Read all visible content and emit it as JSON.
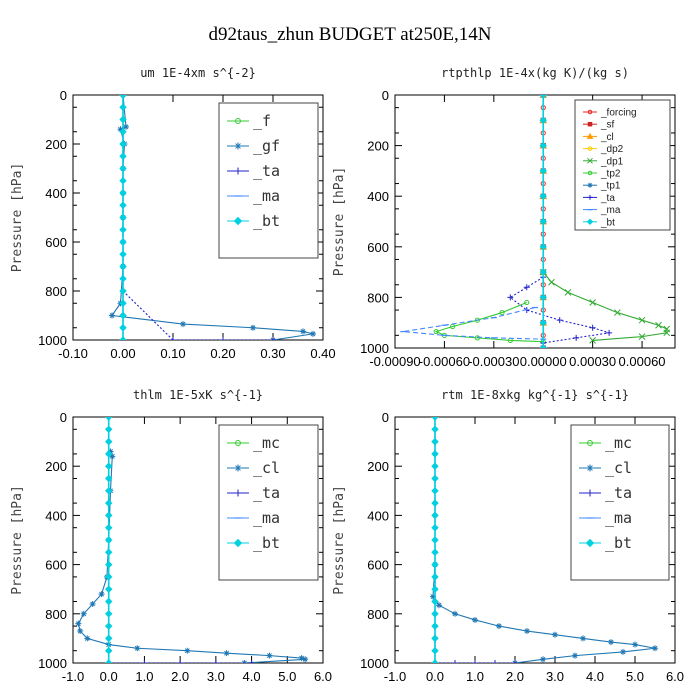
{
  "figure": {
    "title": "d92taus_zhun  BUDGET at250E,14N"
  },
  "colors": {
    "f": "#33cc33",
    "gf": "#1f77b4",
    "ta": "#2222cc",
    "ma": "#4488ff",
    "bt": "#00d0e0",
    "forcing": "#ee2222",
    "sf": "#cc2222",
    "cl_orange": "#ff9900",
    "dp2": "#ffcc00",
    "dp1": "#33aa33",
    "tp2": "#33cc33",
    "tp1": "#1f77b4",
    "mc": "#33cc33",
    "cl": "#1f77b4"
  },
  "chart_data": [
    {
      "type": "line",
      "title": "um   1E-4xm s^{-2}",
      "ylabel": "Pressure [hPa]",
      "xlim": [
        -0.1,
        0.4
      ],
      "ylim": [
        1000,
        0
      ],
      "xticks": [
        "-0.10",
        "0.00",
        "0.10",
        "0.20",
        "0.30",
        "0.40"
      ],
      "xtick_values": [
        -0.1,
        0.0,
        0.1,
        0.2,
        0.3,
        0.4
      ],
      "yticks": [
        "0",
        "200",
        "400",
        "600",
        "800",
        "1000"
      ],
      "ytick_values": [
        0,
        200,
        400,
        600,
        800,
        1000
      ],
      "legend": {
        "placement": "top-right",
        "style": "big"
      },
      "series": [
        {
          "name": "_f",
          "color": "#33cc33",
          "marker": "circle",
          "x": [
            0,
            0,
            0,
            0,
            0,
            0,
            0,
            0,
            0,
            0,
            0,
            0
          ],
          "y": [
            0,
            100,
            200,
            300,
            400,
            500,
            600,
            700,
            800,
            900,
            950,
            1000
          ]
        },
        {
          "name": "_gf",
          "color": "#1f77b4",
          "marker": "star",
          "x": [
            0.0,
            0.006,
            -0.005,
            0.003,
            0.0,
            0.0,
            0.0,
            0.0,
            0.0,
            -0.005,
            -0.022,
            0.12,
            0.26,
            0.36,
            0.38,
            0.3
          ],
          "y": [
            0,
            130,
            140,
            200,
            300,
            400,
            500,
            600,
            700,
            850,
            900,
            935,
            950,
            965,
            975,
            1000
          ]
        },
        {
          "name": "_ta",
          "color": "#2222cc",
          "marker": "plus",
          "x": [
            0,
            0,
            0,
            0,
            0,
            0,
            0,
            0,
            0,
            0.1,
            0.2,
            0.3
          ],
          "y": [
            0,
            100,
            200,
            300,
            400,
            500,
            600,
            700,
            800,
            1000,
            1000,
            1000
          ]
        },
        {
          "name": "_ma",
          "color": "#4488ff",
          "marker": "dash",
          "x": [
            0,
            0,
            0,
            0,
            0,
            0,
            0,
            0,
            0,
            0,
            0
          ],
          "y": [
            0,
            100,
            200,
            300,
            400,
            500,
            600,
            700,
            800,
            900,
            1000
          ]
        },
        {
          "name": "_bt",
          "color": "#00d0e0",
          "marker": "diamond",
          "x": [
            0,
            0,
            0,
            0,
            0,
            0,
            0,
            0,
            0,
            0,
            0,
            0,
            0,
            0,
            0,
            0,
            0,
            0,
            0,
            0,
            0
          ],
          "y": [
            0,
            50,
            100,
            150,
            200,
            250,
            300,
            350,
            400,
            450,
            500,
            550,
            600,
            650,
            700,
            750,
            800,
            850,
            900,
            950,
            1000
          ]
        }
      ]
    },
    {
      "type": "line",
      "title": "rtpthlp   1E-4x(kg K)/(kg s)",
      "ylabel": "Pressure [hPa]",
      "xlim": [
        -0.0009,
        0.0008
      ],
      "ylim": [
        1000,
        0
      ],
      "xticks": [
        "-0.00090",
        "-0.00060",
        "-0.00030",
        "0.00000",
        "0.00030",
        "0.00060"
      ],
      "xtick_values": [
        -0.0009,
        -0.0006,
        -0.0003,
        0.0,
        0.0003,
        0.0006
      ],
      "yticks": [
        "0",
        "200",
        "400",
        "600",
        "800",
        "1000"
      ],
      "ytick_values": [
        0,
        200,
        400,
        600,
        800,
        1000
      ],
      "legend": {
        "placement": "top-right",
        "style": "small"
      },
      "series": [
        {
          "name": "_forcing",
          "color": "#ee2222",
          "marker": "circle",
          "x": [
            0,
            0,
            0,
            0,
            0,
            0,
            0,
            0,
            0,
            0,
            0,
            0,
            0,
            0,
            0,
            0,
            0,
            0,
            0,
            0,
            0
          ],
          "y": [
            0,
            50,
            100,
            150,
            200,
            250,
            300,
            350,
            400,
            450,
            500,
            550,
            600,
            650,
            700,
            750,
            800,
            850,
            900,
            950,
            1000
          ]
        },
        {
          "name": "_sf",
          "color": "#cc2222",
          "marker": "square",
          "x": [
            0,
            0,
            0,
            0,
            0,
            0,
            0,
            0,
            0,
            0,
            0
          ],
          "y": [
            0,
            100,
            200,
            300,
            400,
            500,
            600,
            700,
            800,
            900,
            1000
          ]
        },
        {
          "name": "_cl",
          "color": "#ff9900",
          "marker": "triangle",
          "x": [
            0,
            0,
            0,
            0,
            0,
            0,
            0,
            0,
            0,
            0,
            0
          ],
          "y": [
            0,
            100,
            200,
            300,
            400,
            500,
            600,
            700,
            800,
            900,
            1000
          ]
        },
        {
          "name": "_dp2",
          "color": "#ffcc00",
          "marker": "circle",
          "x": [
            0,
            0,
            0,
            0,
            0,
            0,
            0,
            0,
            0,
            0,
            0
          ],
          "y": [
            0,
            100,
            200,
            300,
            400,
            500,
            600,
            700,
            800,
            900,
            1000
          ]
        },
        {
          "name": "_dp1",
          "color": "#33aa33",
          "marker": "x",
          "x": [
            0.0,
            5e-05,
            0.00015,
            0.0003,
            0.00045,
            0.0006,
            0.0007,
            0.00075,
            0.00075,
            0.0006,
            0.0003
          ],
          "y": [
            700,
            740,
            780,
            820,
            860,
            890,
            910,
            925,
            940,
            955,
            970
          ]
        },
        {
          "name": "_tp2",
          "color": "#33cc33",
          "marker": "circle",
          "x": [
            -0.0001,
            -0.00025,
            -0.0004,
            -0.00055,
            -0.00065,
            -0.0006,
            -0.0004,
            -0.0002,
            0.0
          ],
          "y": [
            820,
            860,
            890,
            915,
            935,
            950,
            960,
            970,
            975
          ]
        },
        {
          "name": "_tp1",
          "color": "#1f77b4",
          "marker": "star",
          "x": [
            0,
            0,
            0,
            0,
            0,
            0,
            0,
            0,
            0,
            0,
            0
          ],
          "y": [
            0,
            100,
            200,
            300,
            400,
            500,
            600,
            700,
            800,
            900,
            1000
          ]
        },
        {
          "name": "_ta",
          "color": "#2222cc",
          "marker": "plus",
          "x": [
            0.0,
            -0.0001,
            -0.0002,
            -0.0001,
            0.0001,
            0.0003,
            0.0004,
            0.0002,
            0.0
          ],
          "y": [
            720,
            760,
            800,
            850,
            890,
            920,
            940,
            960,
            980
          ]
        },
        {
          "name": "_ma",
          "color": "#4488ff",
          "marker": "dash",
          "x": [
            -5e-05,
            -0.0003,
            -0.0006,
            -0.00085,
            -0.0006,
            -0.0003,
            0.0
          ],
          "y": [
            840,
            880,
            910,
            935,
            950,
            960,
            965
          ]
        },
        {
          "name": "_bt",
          "color": "#00d0e0",
          "marker": "diamond",
          "x": [
            0,
            0,
            0,
            0,
            0,
            0,
            0,
            0,
            0,
            0,
            0
          ],
          "y": [
            0,
            100,
            200,
            300,
            400,
            500,
            600,
            700,
            800,
            900,
            1000
          ]
        }
      ]
    },
    {
      "type": "line",
      "title": "thlm   1E-5xK s^{-1}",
      "ylabel": "Pressure [hPa]",
      "xlim": [
        -1.0,
        6.0
      ],
      "ylim": [
        1000,
        0
      ],
      "xticks": [
        "-1.0",
        "0.0",
        "1.0",
        "2.0",
        "3.0",
        "4.0",
        "5.0",
        "6.0"
      ],
      "xtick_values": [
        -1.0,
        0.0,
        1.0,
        2.0,
        3.0,
        4.0,
        5.0,
        6.0
      ],
      "yticks": [
        "0",
        "200",
        "400",
        "600",
        "800",
        "1000"
      ],
      "ytick_values": [
        0,
        200,
        400,
        600,
        800,
        1000
      ],
      "legend": {
        "placement": "top-right",
        "style": "big"
      },
      "series": [
        {
          "name": "_mc",
          "color": "#33cc33",
          "marker": "circle",
          "x": [
            0,
            0,
            0,
            0,
            0,
            0,
            0,
            0,
            0,
            0,
            0,
            0,
            0,
            0,
            0,
            0,
            0,
            0,
            0,
            0,
            0
          ],
          "y": [
            0,
            50,
            100,
            150,
            200,
            250,
            300,
            350,
            400,
            450,
            500,
            550,
            600,
            650,
            700,
            750,
            800,
            850,
            900,
            950,
            1000
          ]
        },
        {
          "name": "_cl",
          "color": "#1f77b4",
          "marker": "star",
          "x": [
            0.05,
            0.1,
            0.05,
            0.0,
            -0.05,
            -0.2,
            -0.45,
            -0.7,
            -0.85,
            -0.8,
            -0.6,
            0.0,
            0.8,
            2.2,
            3.3,
            4.5,
            5.4,
            5.5,
            3.8
          ],
          "y": [
            140,
            160,
            300,
            500,
            650,
            720,
            760,
            800,
            840,
            870,
            900,
            925,
            940,
            950,
            960,
            970,
            980,
            985,
            1000
          ]
        },
        {
          "name": "_ta",
          "color": "#2222cc",
          "marker": "plus",
          "x": [
            0,
            0,
            0,
            0,
            0,
            0,
            0,
            1.0,
            2.0,
            3.0,
            4.0
          ],
          "y": [
            0,
            200,
            400,
            600,
            800,
            900,
            1000,
            1000,
            1000,
            1000,
            1000
          ]
        },
        {
          "name": "_ma",
          "color": "#4488ff",
          "marker": "dash",
          "x": [
            0,
            0,
            0,
            0,
            0,
            0,
            0,
            0,
            0,
            0,
            0
          ],
          "y": [
            0,
            100,
            200,
            300,
            400,
            500,
            600,
            700,
            800,
            900,
            1000
          ]
        },
        {
          "name": "_bt",
          "color": "#00d0e0",
          "marker": "diamond",
          "x": [
            0,
            0,
            0,
            0,
            0,
            0,
            0,
            0,
            0,
            0,
            0,
            0,
            0,
            0,
            0,
            0,
            0,
            0,
            0,
            0,
            0
          ],
          "y": [
            0,
            50,
            100,
            150,
            200,
            250,
            300,
            350,
            400,
            450,
            500,
            550,
            600,
            650,
            700,
            750,
            800,
            850,
            900,
            950,
            1000
          ]
        }
      ]
    },
    {
      "type": "line",
      "title": "rtm   1E-8xkg kg^{-1} s^{-1}",
      "ylabel": "Pressure [hPa]",
      "xlim": [
        -1.0,
        6.0
      ],
      "ylim": [
        1000,
        0
      ],
      "xticks": [
        "-1.0",
        "0.0",
        "1.0",
        "2.0",
        "3.0",
        "4.0",
        "5.0",
        "6.0"
      ],
      "xtick_values": [
        -1.0,
        0.0,
        1.0,
        2.0,
        3.0,
        4.0,
        5.0,
        6.0
      ],
      "yticks": [
        "0",
        "200",
        "400",
        "600",
        "800",
        "1000"
      ],
      "ytick_values": [
        0,
        200,
        400,
        600,
        800,
        1000
      ],
      "legend": {
        "placement": "top-right",
        "style": "big"
      },
      "series": [
        {
          "name": "_mc",
          "color": "#33cc33",
          "marker": "circle",
          "x": [
            0,
            0,
            0,
            0,
            0,
            0,
            0,
            0,
            0,
            0,
            0,
            0,
            0,
            0,
            0,
            0,
            0,
            0,
            0,
            0,
            0
          ],
          "y": [
            0,
            50,
            100,
            150,
            200,
            250,
            300,
            350,
            400,
            450,
            500,
            550,
            600,
            650,
            700,
            750,
            800,
            850,
            900,
            950,
            1000
          ]
        },
        {
          "name": "_cl",
          "color": "#1f77b4",
          "marker": "star",
          "x": [
            0.0,
            -0.05,
            0.1,
            0.5,
            1.0,
            1.6,
            2.3,
            3.0,
            3.7,
            4.4,
            5.0,
            5.5,
            4.7,
            3.5,
            2.7,
            2.0
          ],
          "y": [
            600,
            730,
            765,
            800,
            825,
            850,
            870,
            885,
            900,
            915,
            925,
            940,
            955,
            970,
            985,
            1000
          ]
        },
        {
          "name": "_ta",
          "color": "#2222cc",
          "marker": "plus",
          "x": [
            0,
            0,
            0,
            0,
            0,
            0,
            0,
            0.5,
            1.0,
            1.5,
            2.0
          ],
          "y": [
            0,
            200,
            400,
            600,
            800,
            900,
            1000,
            1000,
            1000,
            1000,
            1000
          ]
        },
        {
          "name": "_ma",
          "color": "#4488ff",
          "marker": "dash",
          "x": [
            0,
            0,
            0,
            0,
            0,
            0,
            0,
            0,
            0,
            0,
            0
          ],
          "y": [
            0,
            100,
            200,
            300,
            400,
            500,
            600,
            700,
            800,
            900,
            1000
          ]
        },
        {
          "name": "_bt",
          "color": "#00d0e0",
          "marker": "diamond",
          "x": [
            0,
            0,
            0,
            0,
            0,
            0,
            0,
            0,
            0,
            0,
            0,
            0,
            0,
            0,
            0,
            0,
            0,
            0,
            0,
            0,
            0
          ],
          "y": [
            0,
            50,
            100,
            150,
            200,
            250,
            300,
            350,
            400,
            450,
            500,
            550,
            600,
            650,
            700,
            750,
            800,
            850,
            900,
            950,
            1000
          ]
        }
      ]
    }
  ]
}
